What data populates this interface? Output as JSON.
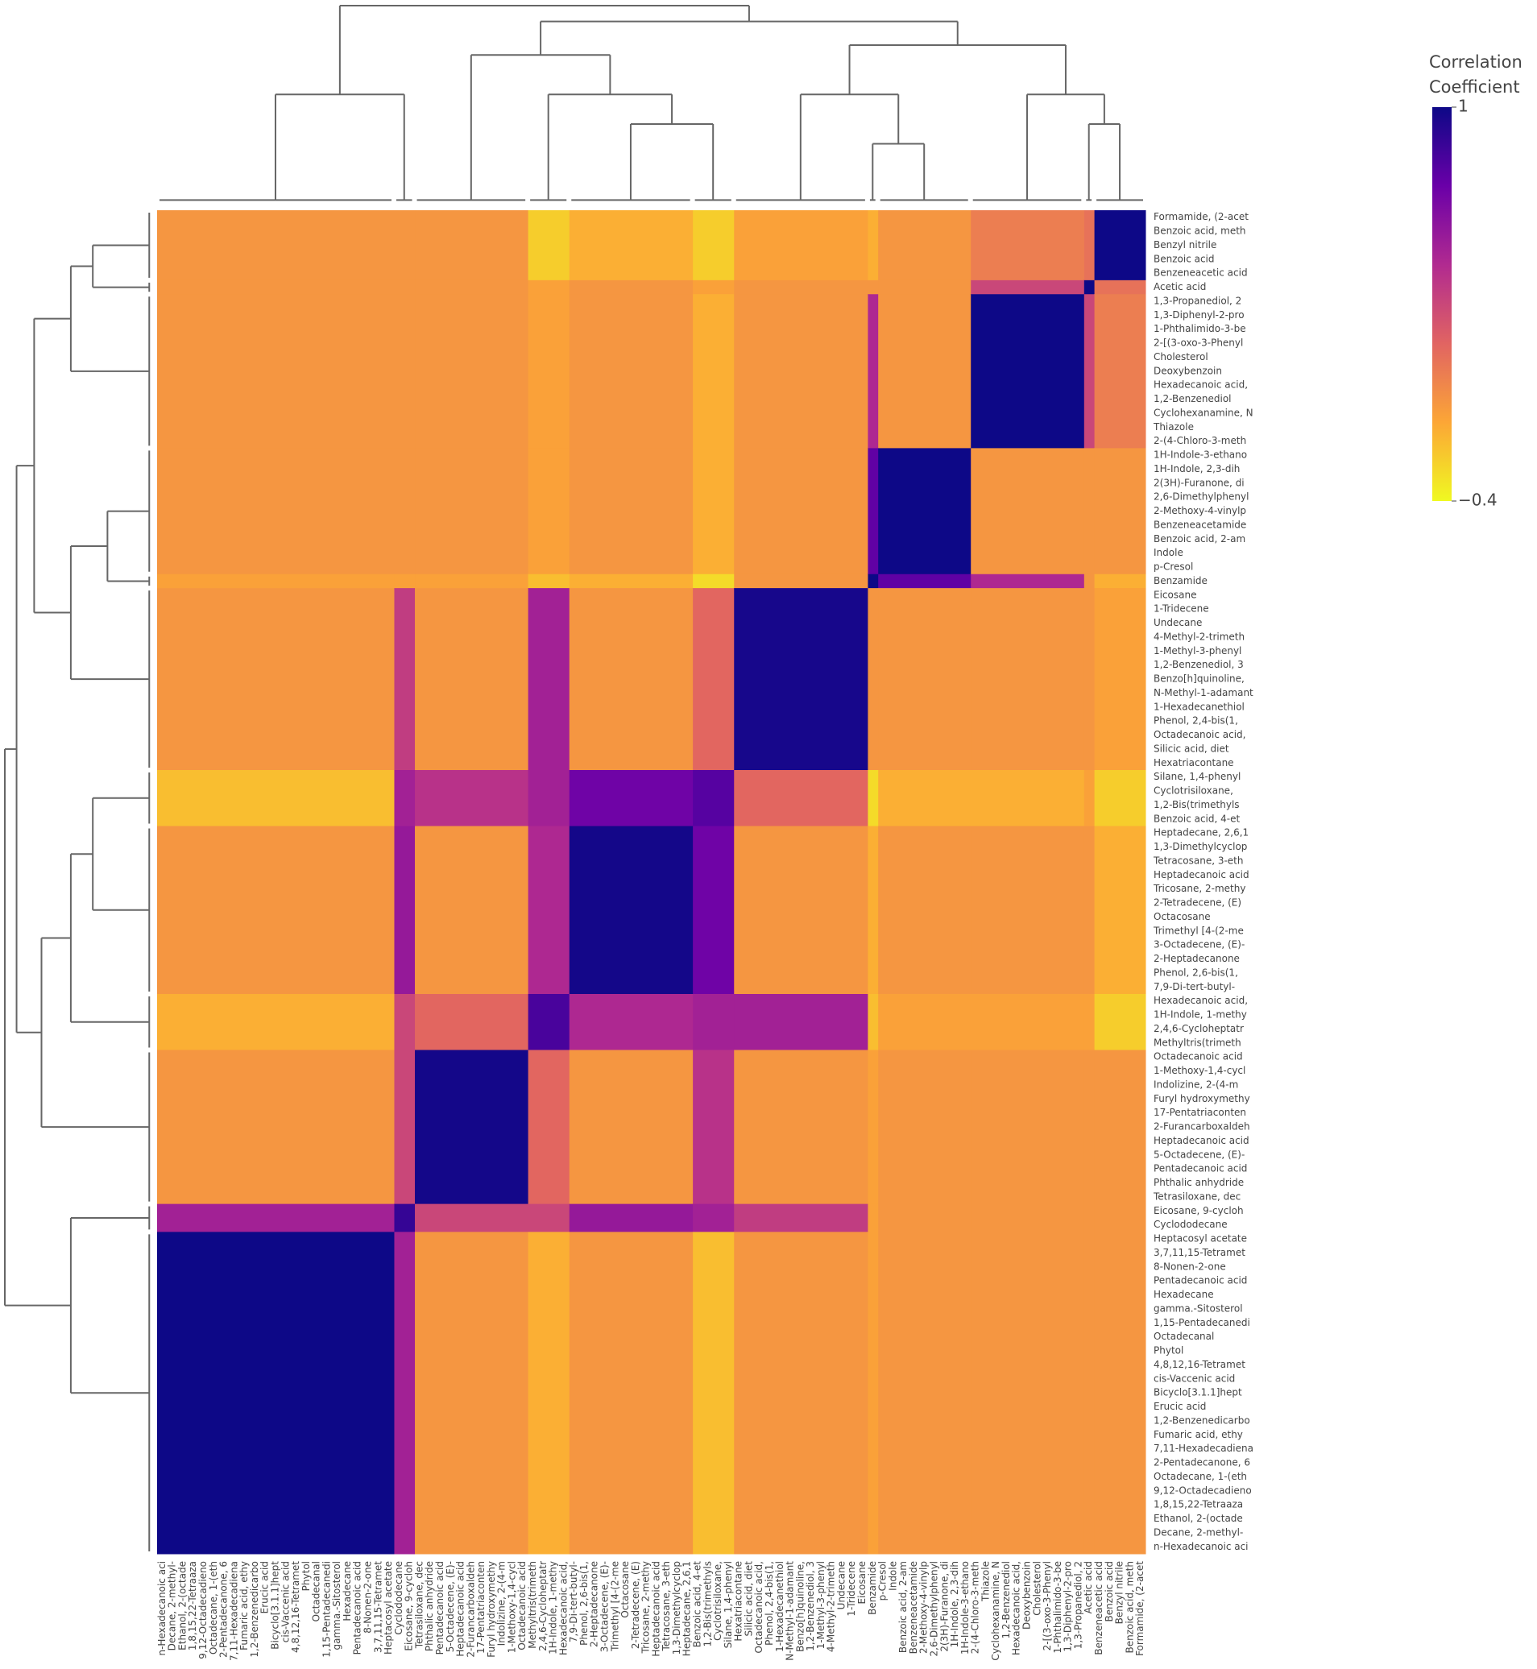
{
  "chart_data": {
    "type": "clustered-heatmap",
    "colorbar_title": "Correlation Coefficient",
    "colorscale": [
      "#f0f921",
      "#fca636",
      "#e16462",
      "#b12a90",
      "#6a00a8",
      "#0d0887"
    ],
    "zlim": [
      -0.4,
      1
    ],
    "zticks": [
      1,
      {
        "value": -0.4,
        "label": "−0.4"
      }
    ],
    "y": [
      "Formamide, (2-acet",
      "Benzoic acid, meth",
      "Benzyl nitrile",
      "Benzoic acid",
      "Benzeneacetic acid",
      "Acetic acid",
      "1,3-Propanediol, 2",
      "1,3-Diphenyl-2-pro",
      "1-Phthalimido-3-be",
      "2-[(3-oxo-3-Phenyl",
      "Cholesterol",
      "Deoxybenzoin",
      "Hexadecanoic acid,",
      "1,2-Benzenediol",
      "Cyclohexanamine, N",
      "Thiazole",
      "2-(4-Chloro-3-meth",
      "1H-Indole-3-ethano",
      "1H-Indole, 2,3-dih",
      "2(3H)-Furanone, di",
      "2,6-Dimethylphenyl",
      "2-Methoxy-4-vinylp",
      "Benzeneacetamide",
      "Benzoic acid, 2-am",
      "Indole",
      "p-Cresol",
      "Benzamide",
      "Eicosane",
      "1-Tridecene",
      "Undecane",
      "4-Methyl-2-trimeth",
      "1-Methyl-3-phenyl",
      "1,2-Benzenediol, 3",
      "Benzo[h]quinoline,",
      "N-Methyl-1-adamant",
      "1-Hexadecanethiol",
      "Phenol, 2,4-bis(1,",
      "Octadecanoic acid,",
      "Silicic acid, diet",
      "Hexatriacontane",
      "Silane, 1,4-phenyl",
      "Cyclotrisiloxane,",
      "1,2-Bis(trimethyls",
      "Benzoic acid, 4-et",
      "Heptadecane, 2,6,1",
      "1,3-Dimethylcyclop",
      "Tetracosane, 3-eth",
      "Heptadecanoic acid",
      "Tricosane, 2-methy",
      "2-Tetradecene, (E)",
      "Octacosane",
      "Trimethyl [4-(2-me",
      "3-Octadecene, (E)-",
      "2-Heptadecanone",
      "Phenol, 2,6-bis(1,",
      "7,9-Di-tert-butyl-",
      "Hexadecanoic acid,",
      "1H-Indole, 1-methy",
      "2,4,6-Cycloheptatr",
      "Methyltris(trimeth",
      "Octadecanoic acid",
      "1-Methoxy-1,4-cycl",
      "Indolizine, 2-(4-m",
      "Furyl hydroxymethy",
      "17-Pentatriaconten",
      "2-Furancarboxaldeh",
      "Heptadecanoic acid",
      "5-Octadecene, (E)-",
      "Pentadecanoic acid",
      "Phthalic anhydride",
      "Tetrasiloxane, dec",
      "Eicosane, 9-cycloh",
      "Cyclododecane",
      "Heptacosyl acetate",
      "3,7,11,15-Tetramet",
      "8-Nonen-2-one",
      "Pentadecanoic acid",
      "Hexadecane",
      "gamma.-Sitosterol",
      "1,15-Pentadecanedi",
      "Octadecanal",
      "Phytol",
      "4,8,12,16-Tetramet",
      "cis-Vaccenic acid",
      "Bicyclo[3.1.1]hept",
      "Erucic acid",
      "1,2-Benzenedicarbo",
      "Fumaric acid, ethy",
      "7,11-Hexadecadiena",
      "2-Pentadecanone, 6",
      "Octadecane, 1-(eth",
      "9,12-Octadecadieno",
      "1,8,15,22-Tetraaza",
      "Ethanol, 2-(octade",
      "Decane, 2-methyl-",
      "n-Hexadecanoic aci"
    ],
    "x": [
      "n-Hexadecanoic aci",
      "Decane, 2-methyl-",
      "Ethanol, 2-(octade",
      "1,8,15,22-Tetraaza",
      "9,12-Octadecadieno",
      "Octadecane, 1-(eth",
      "2-Pentadecanone, 6",
      "7,11-Hexadecadiena",
      "Fumaric acid, ethy",
      "1,2-Benzenedicarbo",
      "Erucic acid",
      "Bicyclo[3.1.1]hept",
      "cis-Vaccenic acid",
      "4,8,12,16-Tetramet",
      "Phytol",
      "Octadecanal",
      "1,15-Pentadecanedi",
      "gamma.-Sitosterol",
      "Hexadecane",
      "Pentadecanoic acid",
      "8-Nonen-2-one",
      "3,7,11,15-Tetramet",
      "Heptacosyl acetate",
      "Cyclododecane",
      "Eicosane, 9-cycloh",
      "Tetrasiloxane, dec",
      "Phthalic anhydride",
      "Pentadecanoic acid",
      "5-Octadecene, (E)-",
      "Heptadecanoic acid",
      "2-Furancarboxaldeh",
      "17-Pentatriaconten",
      "Furyl hydroxymethy",
      "Indolizine, 2-(4-m",
      "1-Methoxy-1,4-cycl",
      "Octadecanoic acid",
      "Methyltris(trimeth",
      "2,4,6-Cycloheptatr",
      "1H-Indole, 1-methy",
      "Hexadecanoic acid,",
      "7,9-Di-tert-butyl-",
      "Phenol, 2,6-bis(1,",
      "2-Heptadecanone",
      "3-Octadecene, (E)-",
      "Trimethyl [4-(2-me",
      "Octacosane",
      "2-Tetradecene, (E)",
      "Tricosane, 2-methy",
      "Heptadecanoic acid",
      "Tetracosane, 3-eth",
      "1,3-Dimethylcyclop",
      "Heptadecane, 2,6,1",
      "Benzoic acid, 4-et",
      "1,2-Bis(trimethyls",
      "Cyclotrisiloxane,",
      "Silane, 1,4-phenyl",
      "Hexatriacontane",
      "Silicic acid, diet",
      "Octadecanoic acid,",
      "Phenol, 2,4-bis(1,",
      "1-Hexadecanethiol",
      "N-Methyl-1-adamant",
      "Benzo[h]quinoline,",
      "1,2-Benzenediol, 3",
      "1-Methyl-3-phenyl",
      "4-Methyl-2-trimeth",
      "Undecane",
      "1-Tridecene",
      "Eicosane",
      "Benzamide",
      "p-Cresol",
      "Indole",
      "Benzoic acid, 2-am",
      "Benzeneacetamide",
      "2-Methoxy-4-vinylp",
      "2,6-Dimethylphenyl",
      "2(3H)-Furanone, di",
      "1H-Indole, 2,3-dih",
      "1H-Indole-3-ethano",
      "2-(4-Chloro-3-meth",
      "Thiazole",
      "Cyclohexanamine, N",
      "1,2-Benzenediol",
      "Hexadecanoic acid,",
      "Deoxybenzoin",
      "Cholesterol",
      "2-[(3-oxo-3-Phenyl",
      "1-Phthalimido-3-be",
      "1,3-Diphenyl-2-pro",
      "1,3-Propanediol, 2",
      "Acetic acid",
      "Benzeneacetic acid",
      "Benzoic acid",
      "Benzyl nitrile",
      "Benzoic acid, meth",
      "Formamide, (2-acet"
    ],
    "block_sizes": [
      5,
      1,
      11,
      9,
      1,
      13,
      4,
      12,
      4,
      11,
      2,
      23
    ],
    "z_blocks": [
      [
        1,
        0.1,
        0.05,
        -0.05,
        -0.15,
        -0.1,
        -0.25,
        -0.15,
        -0.25,
        -0.05,
        -0.05,
        -0.05
      ],
      [
        0.1,
        1,
        0.3,
        -0.05,
        -0.05,
        -0.05,
        -0.1,
        -0.05,
        -0.1,
        -0.05,
        -0.05,
        -0.05
      ],
      [
        0.05,
        0.3,
        1,
        -0.05,
        0.45,
        -0.05,
        -0.15,
        -0.05,
        -0.1,
        -0.05,
        -0.05,
        -0.05
      ],
      [
        -0.05,
        -0.05,
        -0.05,
        1,
        0.75,
        -0.05,
        -0.15,
        -0.05,
        -0.1,
        -0.05,
        -0.05,
        -0.05
      ],
      [
        -0.15,
        -0.05,
        0.45,
        0.75,
        1,
        -0.05,
        -0.3,
        -0.15,
        -0.2,
        -0.1,
        -0.1,
        -0.1
      ],
      [
        -0.1,
        -0.05,
        -0.05,
        -0.05,
        -0.05,
        0.97,
        0.15,
        -0.05,
        0.5,
        -0.05,
        0.35,
        -0.05
      ],
      [
        -0.25,
        -0.1,
        -0.15,
        -0.15,
        -0.3,
        0.15,
        0.78,
        0.7,
        0.5,
        0.4,
        0.5,
        -0.2
      ],
      [
        -0.15,
        -0.05,
        -0.05,
        -0.05,
        -0.15,
        -0.05,
        0.7,
        0.98,
        0.45,
        -0.05,
        0.55,
        -0.05
      ],
      [
        -0.25,
        -0.1,
        -0.1,
        -0.1,
        -0.2,
        0.5,
        0.5,
        0.45,
        0.82,
        0.15,
        0.3,
        -0.15
      ],
      [
        -0.05,
        -0.05,
        -0.05,
        -0.05,
        -0.1,
        -0.05,
        0.4,
        -0.05,
        0.15,
        0.98,
        0.3,
        -0.05
      ],
      [
        -0.05,
        -0.05,
        -0.05,
        -0.05,
        -0.1,
        0.35,
        0.5,
        0.55,
        0.3,
        0.3,
        0.88,
        0.5
      ],
      [
        -0.05,
        -0.05,
        -0.05,
        -0.05,
        -0.1,
        -0.05,
        -0.2,
        -0.05,
        -0.15,
        -0.05,
        0.5,
        1
      ]
    ]
  }
}
